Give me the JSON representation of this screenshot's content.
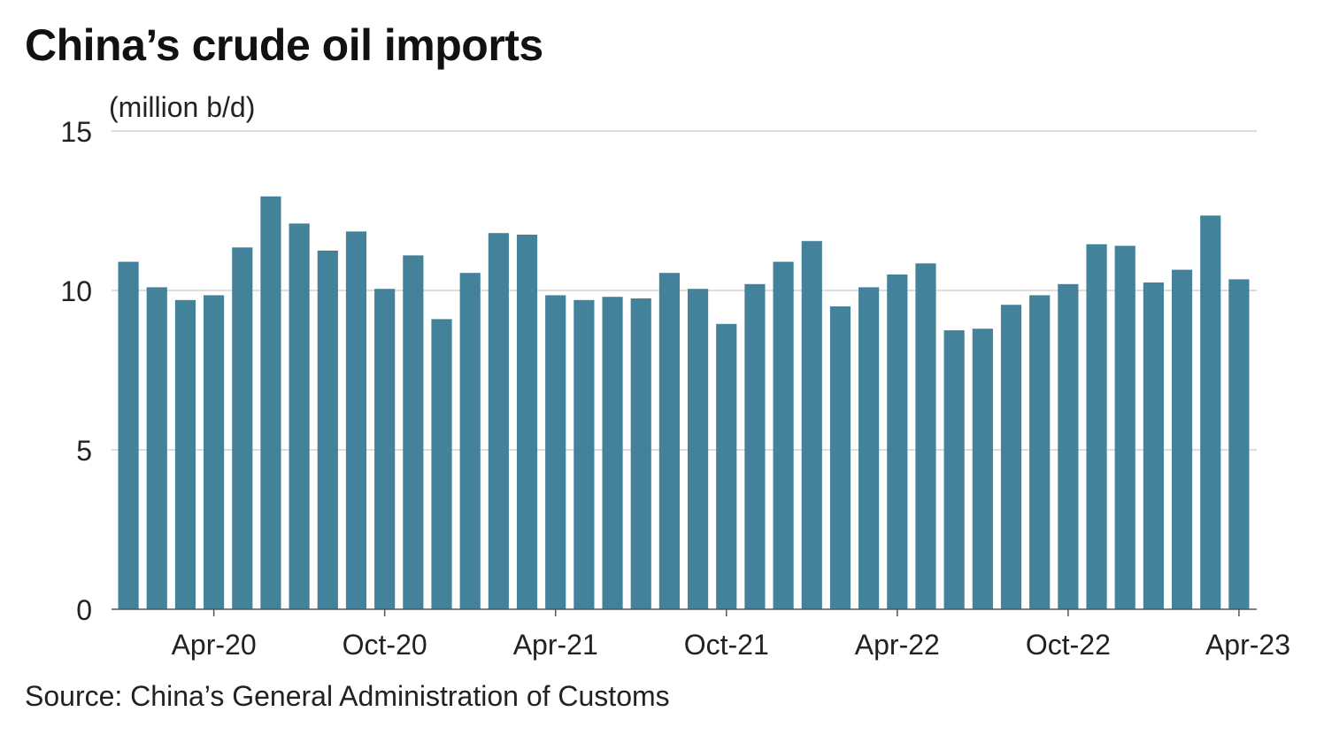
{
  "title": "China’s crude oil imports",
  "source": "Source: China’s General Administration of Customs",
  "colors": {
    "bar": "#44819a",
    "grid": "#d4d4d4",
    "axis": "#555555"
  },
  "chart_data": {
    "type": "bar",
    "title": "China’s crude oil imports",
    "ylabel": "(million b/d)",
    "xlabel": "",
    "ylim": [
      0,
      15
    ],
    "yticks": [
      0,
      5,
      10,
      15
    ],
    "grid": true,
    "categories": [
      "Jan-20",
      "Feb-20",
      "Mar-20",
      "Apr-20",
      "May-20",
      "Jun-20",
      "Jul-20",
      "Aug-20",
      "Sep-20",
      "Oct-20",
      "Nov-20",
      "Dec-20",
      "Jan-21",
      "Feb-21",
      "Mar-21",
      "Apr-21",
      "May-21",
      "Jun-21",
      "Jul-21",
      "Aug-21",
      "Sep-21",
      "Oct-21",
      "Nov-21",
      "Dec-21",
      "Jan-22",
      "Feb-22",
      "Mar-22",
      "Apr-22",
      "May-22",
      "Jun-22",
      "Jul-22",
      "Aug-22",
      "Sep-22",
      "Oct-22",
      "Nov-22",
      "Dec-22",
      "Jan-23",
      "Feb-23",
      "Mar-23",
      "Apr-23"
    ],
    "values": [
      10.9,
      10.1,
      9.7,
      9.85,
      11.35,
      12.95,
      12.1,
      11.25,
      11.85,
      10.05,
      11.1,
      9.1,
      10.55,
      11.8,
      11.75,
      9.85,
      9.7,
      9.8,
      9.75,
      10.55,
      10.05,
      8.95,
      10.2,
      10.9,
      11.55,
      9.5,
      10.1,
      10.5,
      10.85,
      8.75,
      8.8,
      9.55,
      9.85,
      10.2,
      11.45,
      11.4,
      10.25,
      10.65,
      12.35,
      10.35
    ],
    "xtick_labels": [
      {
        "index": 3,
        "label": "Apr-20"
      },
      {
        "index": 9,
        "label": "Oct-20"
      },
      {
        "index": 15,
        "label": "Apr-21"
      },
      {
        "index": 21,
        "label": "Oct-21"
      },
      {
        "index": 27,
        "label": "Apr-22"
      },
      {
        "index": 33,
        "label": "Oct-22"
      },
      {
        "index": 39,
        "label": "Apr-23"
      }
    ]
  }
}
